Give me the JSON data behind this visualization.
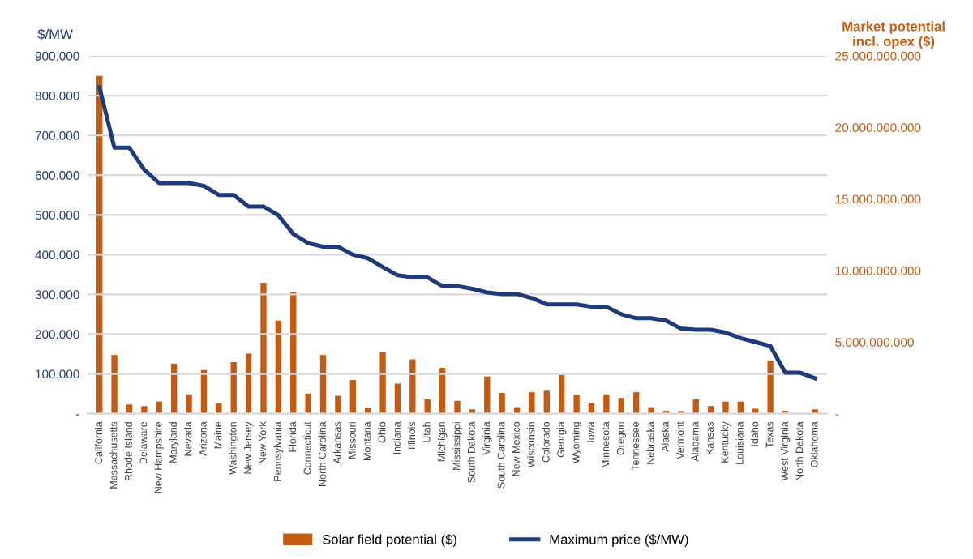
{
  "chart_data": {
    "type": "bar",
    "ylabel": "$/MW",
    "y2label": "Market potential\nincl. opex ($)",
    "categories": [
      "California",
      "Massachusetts",
      "Rhode Island",
      "Delaware",
      "New Hampshire",
      "Maryland",
      "Nevada",
      "Arizona",
      "Maine",
      "Washington",
      "New Jersey",
      "New York",
      "Pennsylvania",
      "Florida",
      "Connecticut",
      "North Carolina",
      "Arkansas",
      "Missouri",
      "Montana",
      "Ohio",
      "Indiana",
      "Illinois",
      "Utah",
      "Michigan",
      "Mississippi",
      "South Dakota",
      "Virginia",
      "South Carolina",
      "New Mexico",
      "Wisconsin",
      "Colorado",
      "Georgia",
      "Wyoming",
      "Iowa",
      "Minnesota",
      "Oregon",
      "Tennessee",
      "Nebraska",
      "Alaska",
      "Vermont",
      "Alabama",
      "Kansas",
      "Kentucky",
      "Louisiana",
      "Idaho",
      "Texas",
      "West Virginia",
      "North Dakota",
      "Oklahoma"
    ],
    "series": [
      {
        "name": "Solar field potential ($)",
        "axis": "y2",
        "color": "#c55a11",
        "values": [
          23600000000,
          4100000000,
          640000000,
          530000000,
          850000000,
          3500000000,
          1350000000,
          3050000000,
          710000000,
          3600000000,
          4200000000,
          9150000000,
          6500000000,
          8500000000,
          1400000000,
          4100000000,
          1250000000,
          2350000000,
          400000000,
          4300000000,
          2100000000,
          3800000000,
          1000000000,
          3200000000,
          900000000,
          300000000,
          2600000000,
          1450000000,
          450000000,
          1500000000,
          1600000000,
          2700000000,
          1300000000,
          750000000,
          1350000000,
          1100000000,
          1500000000,
          450000000,
          200000000,
          180000000,
          1000000000,
          530000000,
          850000000,
          850000000,
          350000000,
          3700000000,
          200000000,
          null,
          300000000
        ]
      },
      {
        "name": "Maximum price ($/MW)",
        "type": "line",
        "axis": "y",
        "color": "#1f3a7a",
        "values": [
          821000,
          669000,
          669000,
          614000,
          580000,
          580000,
          580000,
          573000,
          550000,
          550000,
          521000,
          521000,
          499000,
          452000,
          429000,
          420000,
          420000,
          400000,
          391000,
          369000,
          348000,
          343000,
          343000,
          321000,
          321000,
          314000,
          305000,
          301000,
          301000,
          291000,
          275000,
          275000,
          275000,
          269000,
          269000,
          250000,
          240000,
          240000,
          234000,
          214000,
          211000,
          211000,
          204000,
          190000,
          180000,
          170000,
          103000,
          103000,
          89000
        ]
      }
    ],
    "ylim": [
      0,
      900000
    ],
    "yticks": [
      {
        "value": 0,
        "label": "-"
      },
      {
        "value": 100000,
        "label": "100.000"
      },
      {
        "value": 200000,
        "label": "200.000"
      },
      {
        "value": 300000,
        "label": "300.000"
      },
      {
        "value": 400000,
        "label": "400.000"
      },
      {
        "value": 500000,
        "label": "500.000"
      },
      {
        "value": 600000,
        "label": "600.000"
      },
      {
        "value": 700000,
        "label": "700.000"
      },
      {
        "value": 800000,
        "label": "800.000"
      },
      {
        "value": 900000,
        "label": "900.000"
      }
    ],
    "y2lim": [
      0,
      25000000000
    ],
    "y2ticks": [
      {
        "value": 0,
        "label": "-"
      },
      {
        "value": 5000000000,
        "label": "5.000.000.000"
      },
      {
        "value": 10000000000,
        "label": "10.000.000.000"
      },
      {
        "value": 15000000000,
        "label": "15.000.000.000"
      },
      {
        "value": 20000000000,
        "label": "20.000.000.000"
      },
      {
        "value": 25000000000,
        "label": "25.000.000.000"
      }
    ],
    "grid": "y",
    "legend": "bottom"
  }
}
